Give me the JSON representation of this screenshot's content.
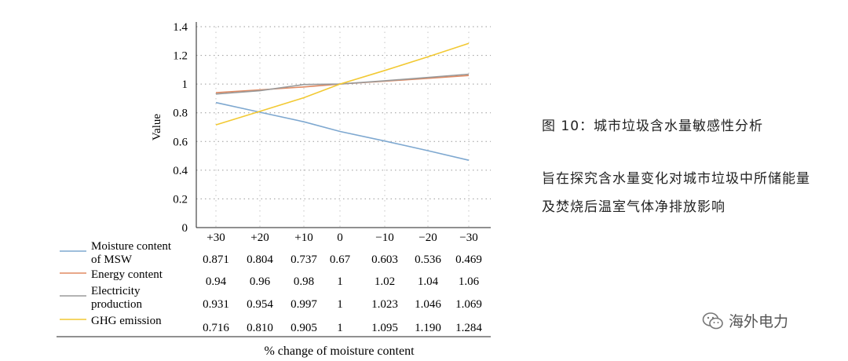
{
  "caption": {
    "title": "图 10：城市垃圾含水量敏感性分析",
    "body": "旨在探究含水量变化对城市垃圾中所储能量及焚烧后温室气体净排放影响"
  },
  "watermark": {
    "text": "海外电力",
    "icon": "wechat-icon"
  },
  "chart_data": {
    "type": "line",
    "title": "",
    "ylabel": "Value",
    "xlabel": "% change of moisture content",
    "categories": [
      "+30",
      "+20",
      "+10",
      "0",
      "−10",
      "−20",
      "−30"
    ],
    "ylim": [
      0,
      1.4
    ],
    "yticks": [
      "0",
      "0.2",
      "0.4",
      "0.6",
      "0.8",
      "1",
      "1.2",
      "1.4"
    ],
    "grid": true,
    "series": [
      {
        "name": "Moisture content of MSW",
        "label_lines": [
          "Moisture content",
          "of MSW"
        ],
        "color": "#7ea8d0",
        "values": [
          0.871,
          0.804,
          0.737,
          0.67,
          0.603,
          0.536,
          0.469
        ],
        "labels": [
          "0.871",
          "0.804",
          "0.737",
          "0.67",
          "0.603",
          "0.536",
          "0.469"
        ]
      },
      {
        "name": "Energy content",
        "label_lines": [
          "Energy content"
        ],
        "color": "#e08a62",
        "values": [
          0.94,
          0.96,
          0.98,
          1,
          1.02,
          1.04,
          1.06
        ],
        "labels": [
          "0.94",
          "0.96",
          "0.98",
          "1",
          "1.02",
          "1.04",
          "1.06"
        ]
      },
      {
        "name": "Electricity production",
        "label_lines": [
          "Electricity",
          "production"
        ],
        "color": "#9a9a9a",
        "values": [
          0.931,
          0.954,
          0.997,
          1,
          1.023,
          1.046,
          1.069
        ],
        "labels": [
          "0.931",
          "0.954",
          "0.997",
          "1",
          "1.023",
          "1.046",
          "1.069"
        ]
      },
      {
        "name": "GHG emission",
        "label_lines": [
          "GHG emission"
        ],
        "color": "#f2c933",
        "values": [
          0.716,
          0.81,
          0.905,
          1,
          1.095,
          1.19,
          1.284
        ],
        "labels": [
          "0.716",
          "0.810",
          "0.905",
          "1",
          "1.095",
          "1.190",
          "1.284"
        ]
      }
    ]
  }
}
